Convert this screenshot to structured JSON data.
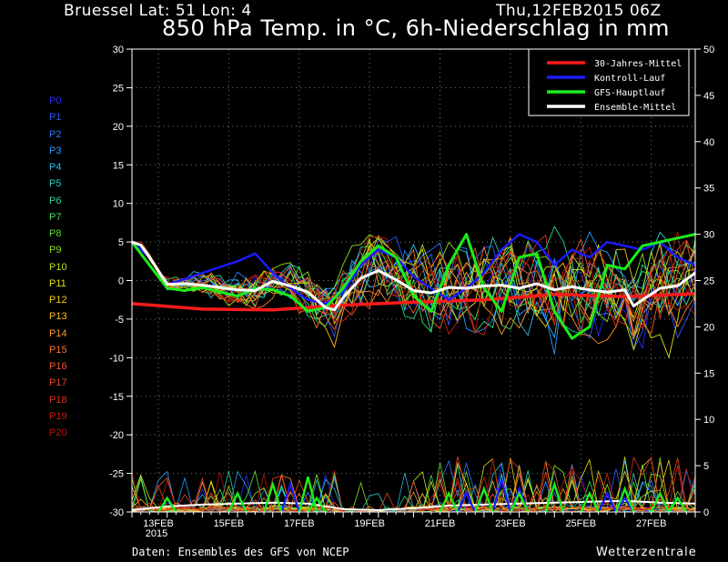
{
  "header": {
    "location": "Bruessel  Lat: 51 Lon: 4",
    "datetime": "Thu,12FEB2015 06Z",
    "title": "850 hPa Temp. in °C, 6h-Niederschlag in mm"
  },
  "footer": {
    "source": "Daten: Ensembles des GFS von NCEP",
    "brand": "Wetterzentrale"
  },
  "members": [
    {
      "label": "P0",
      "color": "#2a2aff"
    },
    {
      "label": "P1",
      "color": "#2a5aff"
    },
    {
      "label": "P2",
      "color": "#2a7aff"
    },
    {
      "label": "P3",
      "color": "#2a9aff"
    },
    {
      "label": "P4",
      "color": "#2ab8e8"
    },
    {
      "label": "P5",
      "color": "#2ad0c0"
    },
    {
      "label": "P6",
      "color": "#2ad890"
    },
    {
      "label": "P7",
      "color": "#3ae060"
    },
    {
      "label": "P8",
      "color": "#5ae030"
    },
    {
      "label": "P9",
      "color": "#8ae020"
    },
    {
      "label": "P10",
      "color": "#b8e010"
    },
    {
      "label": "P11",
      "color": "#e0e010"
    },
    {
      "label": "P12",
      "color": "#f0d010"
    },
    {
      "label": "P13",
      "color": "#f8b820"
    },
    {
      "label": "P14",
      "color": "#f89830"
    },
    {
      "label": "P15",
      "color": "#f87830"
    },
    {
      "label": "P16",
      "color": "#f05828"
    },
    {
      "label": "P17",
      "color": "#e84020"
    },
    {
      "label": "P18",
      "color": "#d83018"
    },
    {
      "label": "P19",
      "color": "#c82010"
    },
    {
      "label": "P20",
      "color": "#b01808"
    }
  ],
  "chart_data": {
    "type": "line",
    "xlim": [
      0,
      16
    ],
    "x_ticks": [
      {
        "x": 0.75,
        "label": "13FEB",
        "sub": "2015"
      },
      {
        "x": 2.75,
        "label": "15FEB"
      },
      {
        "x": 4.75,
        "label": "17FEB"
      },
      {
        "x": 6.75,
        "label": "19FEB"
      },
      {
        "x": 8.75,
        "label": "21FEB"
      },
      {
        "x": 10.75,
        "label": "23FEB"
      },
      {
        "x": 12.75,
        "label": "25FEB"
      },
      {
        "x": 14.75,
        "label": "27FEB"
      }
    ],
    "y_left": {
      "min": -30,
      "max": 30,
      "step": 5
    },
    "y_right": {
      "min": 0,
      "max": 50,
      "step": 5
    },
    "grid": true,
    "legend_position": "top-right",
    "legend": [
      {
        "label": "30-Jahres-Mittel",
        "color": "#ff1a1a"
      },
      {
        "label": "Kontroll-Lauf",
        "color": "#1a1aff"
      },
      {
        "label": "GFS-Hauptlauf",
        "color": "#1aee1a"
      },
      {
        "label": "Ensemble-Mittel",
        "color": "#ffffff"
      }
    ],
    "climate_mean": {
      "x": [
        0,
        2,
        4,
        6,
        8,
        10,
        12,
        14,
        16
      ],
      "y": [
        -3,
        -3.7,
        -3.8,
        -3.2,
        -2.8,
        -2.5,
        -1.8,
        -2.1,
        -1.7
      ]
    },
    "ensemble_mean": {
      "x": [
        0,
        0.25,
        0.5,
        1,
        1.5,
        2,
        3,
        3.5,
        4,
        4.5,
        5,
        5.5,
        5.75,
        6,
        6.5,
        7,
        7.5,
        8,
        8.5,
        9,
        9.5,
        10,
        10.5,
        11,
        11.5,
        12,
        12.5,
        13,
        13.5,
        14,
        14.25,
        14.5,
        15,
        15.5,
        16
      ],
      "y": [
        5,
        4.6,
        3,
        -0.5,
        -0.4,
        -0.6,
        -1.2,
        -1.3,
        -0.1,
        -0.7,
        -1.5,
        -3.5,
        -3.8,
        -2.2,
        0.3,
        1.3,
        0.1,
        -1.3,
        -1.6,
        -0.9,
        -1.0,
        -0.7,
        -0.6,
        -1.0,
        -0.4,
        -1.2,
        -0.8,
        -1.2,
        -1.5,
        -1.2,
        -3.3,
        -2.5,
        -1.0,
        -0.7,
        1.0
      ]
    },
    "control_run": {
      "x": [
        0,
        0.5,
        1,
        1.5,
        2,
        3,
        3.5,
        4,
        4.5,
        5,
        5.5,
        6,
        6.5,
        7,
        7.5,
        8,
        8.5,
        9,
        9.5,
        10,
        10.5,
        11,
        11.5,
        12,
        12.5,
        13,
        13.5,
        14,
        14.5,
        15,
        15.5,
        16
      ],
      "y": [
        5,
        3,
        -0.5,
        0.2,
        1.0,
        2.5,
        3.5,
        1.0,
        -1.0,
        -2.5,
        -3.0,
        -1.5,
        2.0,
        4.0,
        3.0,
        0.5,
        -1.0,
        -2.5,
        -1.0,
        1.0,
        4.0,
        6.0,
        5.0,
        2.0,
        4.0,
        3.0,
        5.0,
        4.5,
        4.0,
        5.0,
        3.0,
        2.0
      ]
    },
    "gfs_main_run": {
      "x": [
        0,
        0.5,
        1,
        1.5,
        2,
        2.5,
        3,
        3.5,
        4,
        4.5,
        5,
        5.5,
        6,
        6.5,
        7,
        7.5,
        8,
        8.5,
        9,
        9.5,
        10,
        10.5,
        11,
        11.5,
        12,
        12.5,
        13,
        13.5,
        14,
        14.5,
        15,
        15.5,
        16
      ],
      "y": [
        5,
        2,
        -1.0,
        -1.3,
        -0.9,
        -1.5,
        -2.0,
        -1.0,
        -1.2,
        -2.0,
        -4.0,
        -3.5,
        -1.0,
        2.5,
        4.5,
        3.0,
        -2.0,
        -4.0,
        2.0,
        6.0,
        -1.0,
        -4.0,
        3.0,
        3.5,
        -4.0,
        -7.5,
        -6.0,
        2.0,
        1.5,
        4.5,
        5.0,
        5.5,
        6.0
      ]
    },
    "precip": {
      "control_run": {
        "x": [
          4.5,
          9.5,
          10.5,
          11.0,
          13.5,
          14.0
        ],
        "y": [
          3.0,
          2.0,
          3.5,
          2.5,
          2.0,
          1.5
        ]
      },
      "gfs_main_run": {
        "x": [
          1.0,
          3.0,
          4.0,
          5.0,
          5.25,
          9.0,
          10.0,
          11.0,
          12.0,
          13.0,
          14.0,
          15.0,
          15.5
        ],
        "y": [
          1.5,
          2.0,
          3.0,
          3.8,
          1.5,
          2.0,
          2.5,
          2.0,
          3.0,
          2.0,
          2.5,
          2.0,
          1.5
        ]
      },
      "ensemble_mean": {
        "x": [
          0,
          1,
          2,
          3,
          4,
          5,
          6,
          7,
          8,
          9,
          10,
          11,
          12,
          13,
          14,
          15,
          16
        ],
        "y": [
          0.2,
          0.6,
          0.8,
          0.9,
          1.0,
          0.9,
          0.3,
          0.2,
          0.4,
          0.7,
          0.8,
          0.9,
          1.0,
          1.1,
          1.2,
          1.0,
          0.9
        ]
      }
    }
  }
}
